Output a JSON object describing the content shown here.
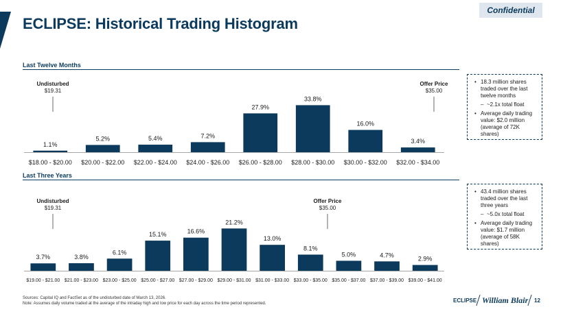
{
  "header": {
    "title": "ECLIPSE: Historical Trading Histogram",
    "confidential": "Confidential"
  },
  "sections": {
    "ltm": "Last Twelve Months",
    "l3y": "Last Three Years"
  },
  "chart_data": [
    {
      "type": "bar",
      "title": "Last Twelve Months",
      "categories": [
        "$18.00 - $20.00",
        "$20.00 - $22.00",
        "$22.00 - $24.00",
        "$24.00 - $26.00",
        "$26.00 - $28.00",
        "$28.00 - $30.00",
        "$30.00 - $32.00",
        "$32.00 - $34.00"
      ],
      "values": [
        1.1,
        5.2,
        5.4,
        7.2,
        27.9,
        33.8,
        16.0,
        3.4
      ],
      "labels": [
        "1.1%",
        "5.2%",
        "5.4%",
        "7.2%",
        "27.9%",
        "33.8%",
        "16.0%",
        "3.4%"
      ],
      "ylim": [
        0,
        35
      ],
      "grid": false,
      "color": "#0b3a5c",
      "annotations": {
        "undisturbed_label": "Undisturbed",
        "undisturbed_value": "$19.31",
        "offer_label": "Offer Price",
        "offer_value": "$35.00"
      }
    },
    {
      "type": "bar",
      "title": "Last Three Years",
      "categories": [
        "$19.00 - $21.00",
        "$21.00 - $23.00",
        "$23.00 - $25.00",
        "$25.00 - $27.00",
        "$27.00 - $29.00",
        "$29.00 - $31.00",
        "$31.00 - $33.00",
        "$33.00 - $35.00",
        "$35.00 - $37.00",
        "$37.00 - $39.00",
        "$39.00 - $41.00"
      ],
      "values": [
        3.7,
        3.8,
        6.1,
        15.1,
        16.6,
        21.2,
        13.0,
        8.1,
        5.0,
        4.7,
        2.9
      ],
      "labels": [
        "3.7%",
        "3.8%",
        "6.1%",
        "15.1%",
        "16.6%",
        "21.2%",
        "13.0%",
        "8.1%",
        "5.0%",
        "4.7%",
        "2.9%"
      ],
      "ylim": [
        0,
        22
      ],
      "grid": false,
      "color": "#0b3a5c",
      "annotations": {
        "undisturbed_label": "Undisturbed",
        "undisturbed_value": "$19.31",
        "offer_label": "Offer Price",
        "offer_value": "$35.00"
      }
    }
  ],
  "bubbles": {
    "ltm": {
      "b1": "18.3 million shares traded over the last twelve months",
      "sub": "~2.1x total float",
      "b2": "Average daily trading value: $2.0 million (average of 72K shares)"
    },
    "l3y": {
      "b1": "43.4 million shares traded over the last three years",
      "sub": "~5.0x total float",
      "b2": "Average daily trading value: $1.7 million (average of 58K shares)"
    }
  },
  "footer": {
    "sources": "Sources: Capital IQ and FactSet as of the undisturbed date of March 13, 2026.",
    "note": "Note: Assumes daily volume traded at the average of the intraday high and low price for each day across the time period represented.",
    "brand": "ECLIPSE",
    "advisor": "William Blair",
    "page": "12"
  }
}
